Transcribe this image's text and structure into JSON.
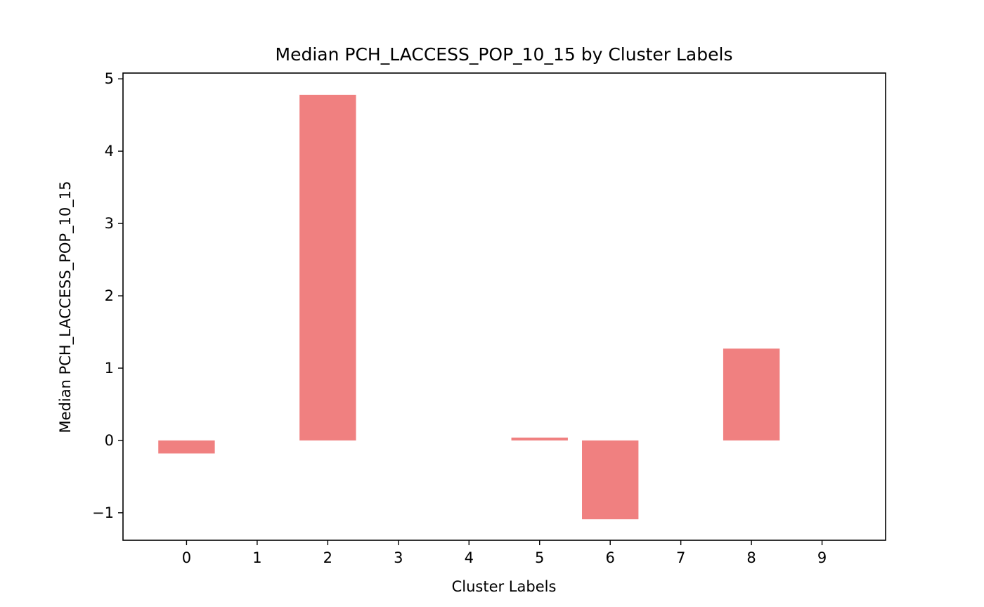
{
  "chart_data": {
    "type": "bar",
    "title": "Median PCH_LACCESS_POP_10_15 by Cluster Labels",
    "xlabel": "Cluster Labels",
    "ylabel": "Median PCH_LACCESS_POP_10_15",
    "categories": [
      "0",
      "1",
      "2",
      "3",
      "4",
      "5",
      "6",
      "7",
      "8",
      "9"
    ],
    "values": [
      -0.18,
      null,
      4.78,
      null,
      null,
      0.04,
      -1.09,
      null,
      1.27,
      null
    ],
    "yticks": [
      "−1",
      "0",
      "1",
      "2",
      "3",
      "4",
      "5"
    ],
    "ytick_values": [
      -1,
      0,
      1,
      2,
      3,
      4,
      5
    ],
    "ylim": [
      -1.38,
      5.08
    ],
    "xlim": [
      -0.9,
      9.9
    ],
    "grid": false,
    "legend": "none",
    "bar_color": "#f08080"
  }
}
